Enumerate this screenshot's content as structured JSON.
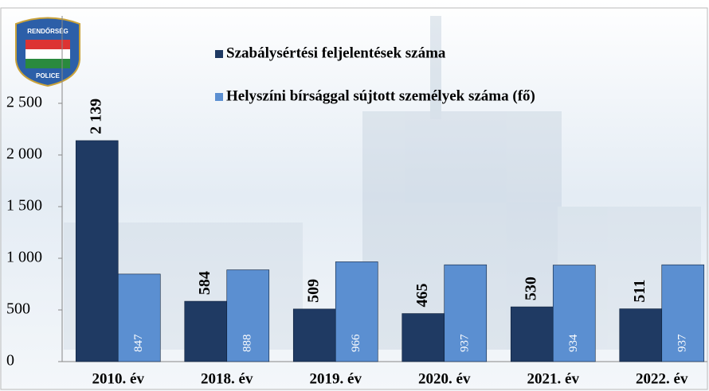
{
  "chart_data": {
    "type": "bar",
    "categories": [
      "2010. év",
      "2018. év",
      "2019. év",
      "2020. év",
      "2021. év",
      "2022. év"
    ],
    "series": [
      {
        "name": "Szabálysértési feljelentések száma",
        "color": "#1f3a63",
        "values": [
          2139,
          584,
          509,
          465,
          530,
          511
        ],
        "value_labels": [
          "2 139",
          "584",
          "509",
          "465",
          "530",
          "511"
        ]
      },
      {
        "name": "Helyszíni bírsággal sújtott személyek száma (fő)",
        "color": "#5b8fd1",
        "values": [
          847,
          888,
          966,
          937,
          934,
          937
        ]
      }
    ],
    "ylim": [
      0,
      2500
    ],
    "yticks": [
      0,
      500,
      {
        "value": 1000,
        "label": "1 000"
      },
      {
        "value": 1500,
        "label": "1 500"
      },
      {
        "value": 2000,
        "label": "2 000"
      },
      {
        "value": 2500,
        "label": "2 500"
      }
    ],
    "logo_texts": [
      "RENDŐRSÉG",
      "POLICE"
    ]
  }
}
